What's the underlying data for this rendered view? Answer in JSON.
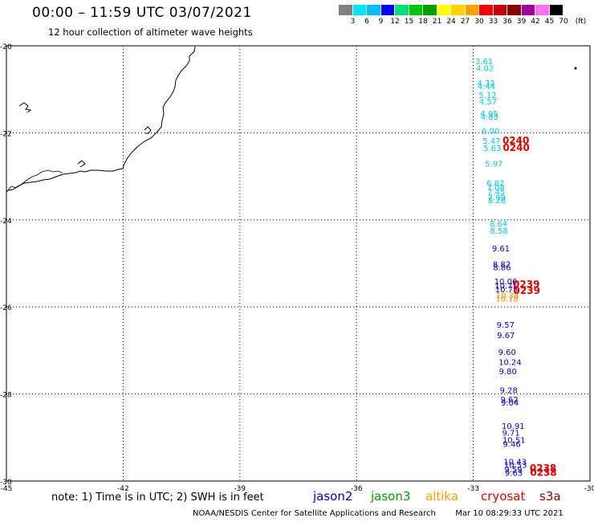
{
  "header": {
    "title": "00:00 – 11:59 UTC 03/07/2021",
    "subtitle": "12 hour collection of altimeter wave heights"
  },
  "color_scale": {
    "labels": [
      "3",
      "6",
      "9",
      "12",
      "15",
      "18",
      "21",
      "24",
      "27",
      "30",
      "33",
      "36",
      "39",
      "42",
      "45",
      "70",
      "(ft)"
    ],
    "colors": [
      "#7f7f7f",
      "#00e5ff",
      "#00bfff",
      "#0000ff",
      "#00e07a",
      "#00c800",
      "#00a000",
      "#ffff00",
      "#ffd200",
      "#ffa000",
      "#ff0000",
      "#c80000",
      "#8b0000",
      "#a000a0",
      "#ff6ef0",
      "#000000"
    ]
  },
  "axes": {
    "lat_labels": [
      "-20",
      "-22",
      "-24",
      "-26",
      "-28",
      "-30"
    ],
    "lon_labels": [
      "-45",
      "-42",
      "-39",
      "-36",
      "-33",
      "-30"
    ]
  },
  "tracks": [
    {
      "name": "cyan",
      "color": "#00c8e6",
      "points": [
        {
          "v": "3.61",
          "lon": -32.95,
          "lat": -20.42
        },
        {
          "v": "4.02",
          "lon": -32.93,
          "lat": -20.58
        },
        {
          "v": "4.32",
          "lon": -32.9,
          "lat": -20.92
        },
        {
          "v": "4.44",
          "lon": -32.89,
          "lat": -21.0
        },
        {
          "v": "5.12",
          "lon": -32.86,
          "lat": -21.2
        },
        {
          "v": "4.57",
          "lon": -32.85,
          "lat": -21.35
        },
        {
          "v": "4.95",
          "lon": -32.82,
          "lat": -21.62
        },
        {
          "v": "4.83",
          "lon": -32.81,
          "lat": -21.7
        },
        {
          "v": "6.00",
          "lon": -32.78,
          "lat": -22.02
        },
        {
          "v": "5.47",
          "lon": -32.76,
          "lat": -22.25
        },
        {
          "v": "5.63",
          "lon": -32.74,
          "lat": -22.42
        },
        {
          "v": "5.97",
          "lon": -32.7,
          "lat": -22.78
        },
        {
          "v": "6.82",
          "lon": -32.66,
          "lat": -23.22
        },
        {
          "v": "7.08",
          "lon": -32.65,
          "lat": -23.32
        },
        {
          "v": "7.45",
          "lon": -32.64,
          "lat": -23.42
        },
        {
          "v": "7.99",
          "lon": -32.63,
          "lat": -23.55
        },
        {
          "v": "8.28",
          "lon": -32.62,
          "lat": -23.62
        },
        {
          "v": "8.64",
          "lon": -32.58,
          "lat": -24.15
        },
        {
          "v": "8.58",
          "lon": -32.57,
          "lat": -24.32
        }
      ]
    },
    {
      "name": "jason2",
      "color": "#0000c8",
      "points": [
        {
          "v": "9.61",
          "lon": -32.52,
          "lat": -24.72
        },
        {
          "v": "8.82",
          "lon": -32.5,
          "lat": -25.08
        },
        {
          "v": "8.86",
          "lon": -32.49,
          "lat": -25.16
        },
        {
          "v": "10.06",
          "lon": -32.46,
          "lat": -25.48
        },
        {
          "v": "10.71",
          "lon": -32.45,
          "lat": -25.58
        },
        {
          "v": "10.75",
          "lon": -32.44,
          "lat": -25.66
        },
        {
          "v": "9.57",
          "lon": -32.4,
          "lat": -26.48
        },
        {
          "v": "9.67",
          "lon": -32.39,
          "lat": -26.72
        },
        {
          "v": "9.60",
          "lon": -32.36,
          "lat": -27.1
        },
        {
          "v": "10.24",
          "lon": -32.35,
          "lat": -27.33
        },
        {
          "v": "9.80",
          "lon": -32.34,
          "lat": -27.55
        },
        {
          "v": "9.28",
          "lon": -32.32,
          "lat": -27.98
        },
        {
          "v": "9.62",
          "lon": -32.3,
          "lat": -28.19
        },
        {
          "v": "9.04",
          "lon": -32.29,
          "lat": -28.27
        },
        {
          "v": "10.91",
          "lon": -32.27,
          "lat": -28.8
        },
        {
          "v": "9.71",
          "lon": -32.26,
          "lat": -28.96
        },
        {
          "v": "10.51",
          "lon": -32.25,
          "lat": -29.12
        },
        {
          "v": "9.46",
          "lon": -32.24,
          "lat": -29.22
        },
        {
          "v": "10.43",
          "lon": -32.22,
          "lat": -29.62
        },
        {
          "v": "10.53",
          "lon": -32.21,
          "lat": -29.7
        },
        {
          "v": "9.59",
          "lon": -32.2,
          "lat": -29.8
        },
        {
          "v": "9.63",
          "lon": -32.19,
          "lat": -29.88
        }
      ]
    },
    {
      "name": "altika",
      "color": "#e09000",
      "points": [
        {
          "v": "10.38",
          "lon": -32.42,
          "lat": -25.8
        },
        {
          "v": "10.18",
          "lon": -32.43,
          "lat": -25.88
        }
      ]
    },
    {
      "name": "s3a",
      "color": "#e00000",
      "points": [
        {
          "v": "0240",
          "lon": -32.25,
          "lat": -22.25
        },
        {
          "v": "0240",
          "lon": -32.24,
          "lat": -22.42
        },
        {
          "v": "0239",
          "lon": -31.98,
          "lat": -25.55
        },
        {
          "v": "0239",
          "lon": -31.97,
          "lat": -25.7
        },
        {
          "v": "0238",
          "lon": -31.55,
          "lat": -29.78
        },
        {
          "v": "0238",
          "lon": -31.54,
          "lat": -29.88
        }
      ]
    }
  ],
  "note": "note: 1) Time is in UTC; 2) SWH is in feet",
  "satellites": [
    {
      "name": "jason2",
      "color": "#0000c8"
    },
    {
      "name": "jason3",
      "color": "#00a000"
    },
    {
      "name": "altika",
      "color": "#ffa000"
    },
    {
      "name": "cryosat",
      "color": "#e00000"
    },
    {
      "name": "s3a",
      "color": "#8b0000"
    }
  ],
  "footer_left": "NOAA/NESDIS Center for Satellite Applications and Research",
  "footer_right": "Mar 10 08:29:33 UTC 2021"
}
